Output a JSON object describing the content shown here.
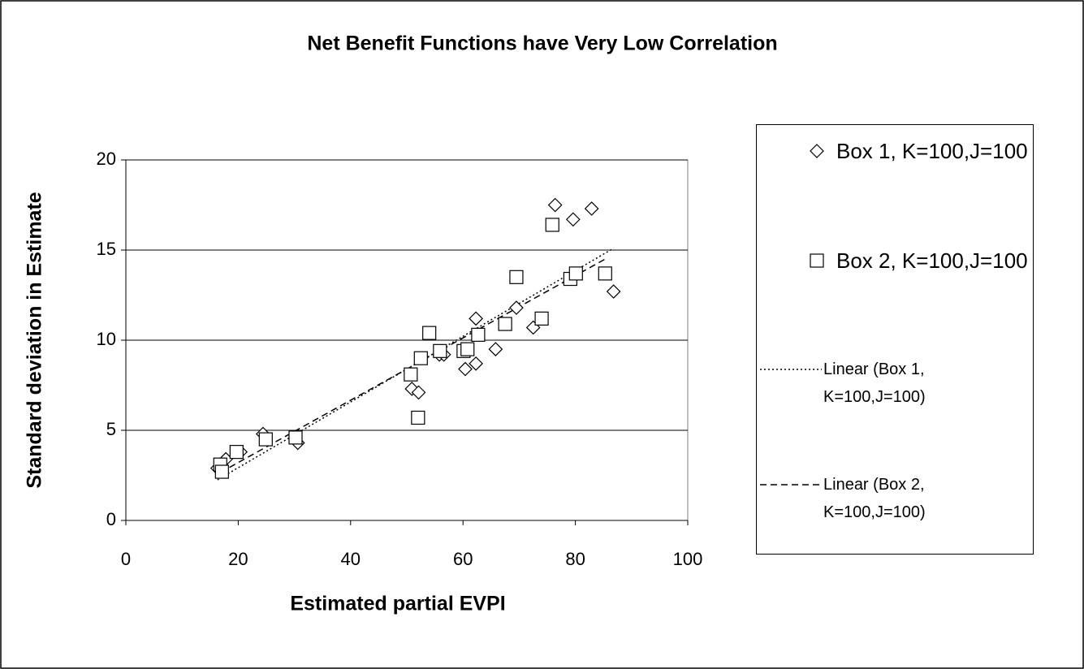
{
  "chart_data": {
    "type": "scatter",
    "title": "Net Benefit Functions have Very Low  Correlation",
    "xlabel": "Estimated partial EVPI",
    "ylabel": "Standard deviation in Estimate",
    "xlim": [
      0,
      100
    ],
    "xticks": [
      0,
      20,
      40,
      60,
      80,
      100
    ],
    "ylim": [
      0,
      20
    ],
    "yticks": [
      0,
      5,
      10,
      15,
      20
    ],
    "grid": true,
    "legend": "right",
    "series": [
      {
        "name": "Box 1, K=100,J=100",
        "marker": "diamond",
        "color": "#000000",
        "x": [
          16.3,
          17.8,
          20.4,
          24.4,
          30.6,
          50.9,
          52.1,
          55.8,
          56.6,
          60.4,
          62.3,
          62.3,
          65.8,
          69.5,
          72.5,
          76.4,
          79.6,
          82.9,
          86.8
        ],
        "values": [
          2.9,
          3.4,
          3.8,
          4.8,
          4.3,
          7.3,
          7.1,
          9.2,
          9.2,
          8.4,
          8.7,
          11.2,
          9.5,
          11.8,
          10.7,
          17.5,
          16.7,
          17.3,
          12.7
        ]
      },
      {
        "name": "Box 2, K=100,J=100",
        "marker": "square",
        "color": "#000000",
        "x": [
          16.8,
          17.1,
          19.7,
          24.9,
          30.2,
          50.7,
          52.0,
          52.5,
          54.0,
          55.9,
          60.1,
          60.8,
          62.7,
          67.5,
          69.5,
          74.0,
          75.9,
          79.1,
          80.1,
          85.3
        ],
        "values": [
          3.1,
          2.7,
          3.8,
          4.5,
          4.6,
          8.1,
          5.7,
          9.0,
          10.4,
          9.4,
          9.4,
          9.5,
          10.3,
          10.9,
          13.5,
          11.2,
          16.4,
          13.4,
          13.7,
          13.7
        ]
      }
    ],
    "trendlines": [
      {
        "name": "Linear (Box 1, K=100,J=100)",
        "series": 0,
        "dash": "2,3"
      },
      {
        "name": "Linear (Box 2, K=100,J=100)",
        "series": 1,
        "dash": "8,5"
      }
    ]
  }
}
